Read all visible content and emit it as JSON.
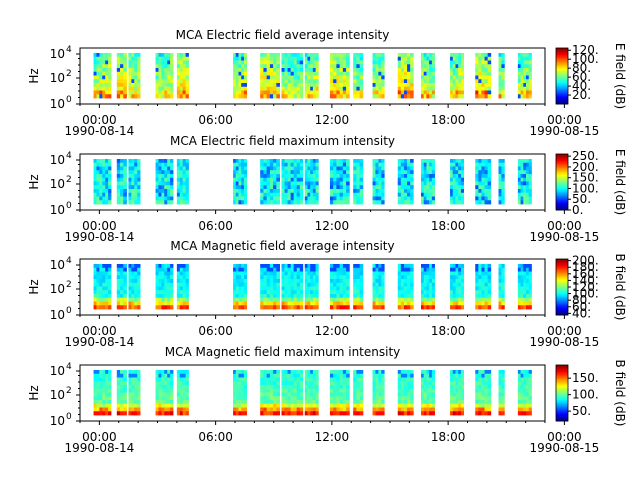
{
  "chart_data": [
    {
      "type": "heatmap",
      "title": "MCA  Electric field average intensity",
      "ylabel": "Hz",
      "y_scale": "log",
      "y_tick_labels": [
        {
          "base": "10",
          "exp": "0"
        },
        {
          "base": "10",
          "exp": "2"
        },
        {
          "base": "10",
          "exp": "4"
        }
      ],
      "x_tick_labels": [
        "00:00",
        "06:00",
        "12:00",
        "18:00",
        "00:00"
      ],
      "x_date_labels": [
        "1990-08-14",
        "1990-08-15"
      ],
      "colorbar": {
        "label": "E field (dB)",
        "tick_labels": [
          "20.",
          "40.",
          "60.",
          "80.",
          "100.",
          "120."
        ],
        "range": [
          0,
          125
        ]
      },
      "data_segments_hours": [
        [
          -0.3,
          0.6
        ],
        [
          0.9,
          1.4
        ],
        [
          1.5,
          2.1
        ],
        [
          2.9,
          3.8
        ],
        [
          4.0,
          4.6
        ],
        [
          6.9,
          7.6
        ],
        [
          8.3,
          9.3
        ],
        [
          9.4,
          10.5
        ],
        [
          10.6,
          11.3
        ],
        [
          11.9,
          12.9
        ],
        [
          13.1,
          13.6
        ],
        [
          14.1,
          14.7
        ],
        [
          15.4,
          16.2
        ],
        [
          16.6,
          17.3
        ],
        [
          18.1,
          18.8
        ],
        [
          19.4,
          20.2
        ],
        [
          20.6,
          20.9
        ],
        [
          21.6,
          22.3
        ]
      ],
      "intensity_profile": "high at low frequencies, lower at high frequencies"
    },
    {
      "type": "heatmap",
      "title": "MCA  Electric field maximum intensity",
      "ylabel": "Hz",
      "y_scale": "log",
      "y_tick_labels": [
        {
          "base": "10",
          "exp": "0"
        },
        {
          "base": "10",
          "exp": "2"
        },
        {
          "base": "10",
          "exp": "4"
        }
      ],
      "x_tick_labels": [
        "00:00",
        "06:00",
        "12:00",
        "18:00",
        "00:00"
      ],
      "x_date_labels": [
        "1990-08-14",
        "1990-08-15"
      ],
      "colorbar": {
        "label": "E field (dB)",
        "tick_labels": [
          "0.",
          "50.",
          "100.",
          "150.",
          "200.",
          "250."
        ],
        "range": [
          0,
          260
        ]
      },
      "data_segments_hours": [
        [
          -0.3,
          0.6
        ],
        [
          0.9,
          1.4
        ],
        [
          1.5,
          2.1
        ],
        [
          2.9,
          3.8
        ],
        [
          4.0,
          4.6
        ],
        [
          6.9,
          7.6
        ],
        [
          8.3,
          9.3
        ],
        [
          9.4,
          10.5
        ],
        [
          10.6,
          11.3
        ],
        [
          11.9,
          12.9
        ],
        [
          13.1,
          13.6
        ],
        [
          14.1,
          14.7
        ],
        [
          15.4,
          16.2
        ],
        [
          16.6,
          17.3
        ],
        [
          18.1,
          18.8
        ],
        [
          19.4,
          20.2
        ],
        [
          20.6,
          20.9
        ],
        [
          21.6,
          22.3
        ]
      ],
      "intensity_profile": "mostly mid-low values with blue bands"
    },
    {
      "type": "heatmap",
      "title": "MCA  Magnetic field average intensity",
      "ylabel": "Hz",
      "y_scale": "log",
      "y_tick_labels": [
        {
          "base": "10",
          "exp": "0"
        },
        {
          "base": "10",
          "exp": "2"
        },
        {
          "base": "10",
          "exp": "4"
        }
      ],
      "x_tick_labels": [
        "00:00",
        "06:00",
        "12:00",
        "18:00",
        "00:00"
      ],
      "x_date_labels": [
        "1990-08-14",
        "1990-08-15"
      ],
      "colorbar": {
        "label": "B field (dB)",
        "tick_labels": [
          "40.",
          "60.",
          "80.",
          "100.",
          "120.",
          "140.",
          "160.",
          "180.",
          "200."
        ],
        "range": [
          35,
          205
        ]
      },
      "data_segments_hours": [
        [
          -0.3,
          0.6
        ],
        [
          0.9,
          1.4
        ],
        [
          1.5,
          2.1
        ],
        [
          2.9,
          3.8
        ],
        [
          4.0,
          4.6
        ],
        [
          6.9,
          7.6
        ],
        [
          8.3,
          9.3
        ],
        [
          9.4,
          10.5
        ],
        [
          10.6,
          11.3
        ],
        [
          11.9,
          12.9
        ],
        [
          13.1,
          13.6
        ],
        [
          14.1,
          14.7
        ],
        [
          15.4,
          16.2
        ],
        [
          16.6,
          17.3
        ],
        [
          18.1,
          18.8
        ],
        [
          19.4,
          20.2
        ],
        [
          20.6,
          20.9
        ],
        [
          21.6,
          22.3
        ]
      ],
      "intensity_profile": "high (yellow/red) at lowest frequencies, cyan at high frequencies"
    },
    {
      "type": "heatmap",
      "title": "MCA  Magnetic field maximum intensity",
      "ylabel": "Hz",
      "y_scale": "log",
      "y_tick_labels": [
        {
          "base": "10",
          "exp": "0"
        },
        {
          "base": "10",
          "exp": "2"
        },
        {
          "base": "10",
          "exp": "4"
        }
      ],
      "x_tick_labels": [
        "00:00",
        "06:00",
        "12:00",
        "18:00",
        "00:00"
      ],
      "x_date_labels": [
        "1990-08-14",
        "1990-08-15"
      ],
      "colorbar": {
        "label": "B field (dB)",
        "tick_labels": [
          "50.",
          "100.",
          "150."
        ],
        "range": [
          20,
          190
        ]
      },
      "data_segments_hours": [
        [
          -0.3,
          0.6
        ],
        [
          0.9,
          1.4
        ],
        [
          1.5,
          2.1
        ],
        [
          2.9,
          3.8
        ],
        [
          4.0,
          4.6
        ],
        [
          6.9,
          7.6
        ],
        [
          8.3,
          9.3
        ],
        [
          9.4,
          10.5
        ],
        [
          10.6,
          11.3
        ],
        [
          11.9,
          12.9
        ],
        [
          13.1,
          13.6
        ],
        [
          14.1,
          14.7
        ],
        [
          15.4,
          16.2
        ],
        [
          16.6,
          17.3
        ],
        [
          18.1,
          18.8
        ],
        [
          19.4,
          20.2
        ],
        [
          20.6,
          20.9
        ],
        [
          21.6,
          22.3
        ]
      ],
      "intensity_profile": "high (orange/red) at lowest frequencies, green/cyan at high frequencies"
    }
  ]
}
